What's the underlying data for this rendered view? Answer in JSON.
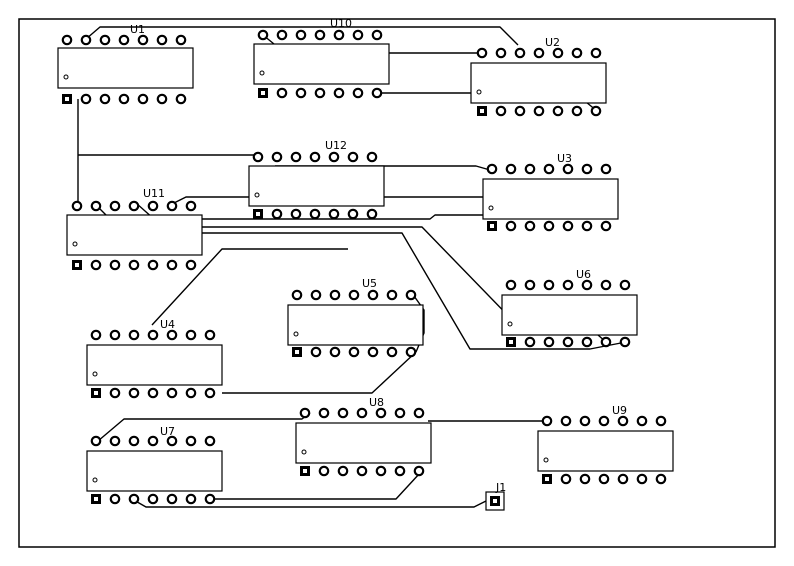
{
  "components": [
    {
      "ref": "U1",
      "pins_per_row": 7
    },
    {
      "ref": "U10",
      "pins_per_row": 7
    },
    {
      "ref": "U2",
      "pins_per_row": 7
    },
    {
      "ref": "U12",
      "pins_per_row": 7
    },
    {
      "ref": "U3",
      "pins_per_row": 7
    },
    {
      "ref": "U11",
      "pins_per_row": 7
    },
    {
      "ref": "U6",
      "pins_per_row": 7
    },
    {
      "ref": "U5",
      "pins_per_row": 7
    },
    {
      "ref": "U4",
      "pins_per_row": 7
    },
    {
      "ref": "U8",
      "pins_per_row": 7
    },
    {
      "ref": "U9",
      "pins_per_row": 7
    },
    {
      "ref": "U7",
      "pins_per_row": 7
    }
  ],
  "connector": {
    "ref": "J1",
    "pins": 1
  },
  "colors": {
    "trace": "#000000",
    "background": "#ffffff"
  }
}
